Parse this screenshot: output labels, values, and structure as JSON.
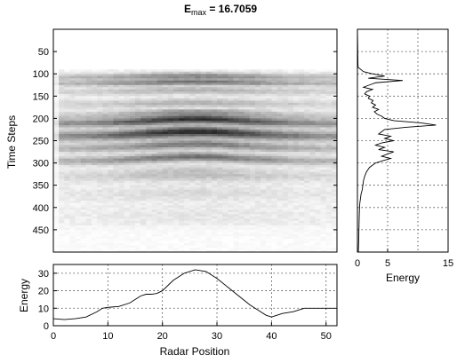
{
  "chart_data": [
    {
      "type": "heatmap",
      "title_main": "E",
      "title_sub": "max",
      "title_rest": " = 16.7059",
      "ylabel": "Time Steps",
      "xlim": [
        0,
        52
      ],
      "ylim": [
        0,
        500
      ],
      "y_reversed": true,
      "yticks": [
        "50",
        "100",
        "150",
        "200",
        "250",
        "300",
        "350",
        "400",
        "450"
      ],
      "ytick_values": [
        50,
        100,
        150,
        200,
        250,
        300,
        350,
        400,
        450
      ],
      "colormap": "gray-reversed",
      "data_rows": [
        90,
        500
      ],
      "bands": [
        {
          "t": 108,
          "w": 8,
          "amp": 0.5
        },
        {
          "t": 122,
          "w": 6,
          "amp": 0.55
        },
        {
          "t": 140,
          "w": 9,
          "amp": 0.3
        },
        {
          "t": 168,
          "w": 10,
          "amp": 0.3
        },
        {
          "t": 195,
          "w": 10,
          "amp": 0.4
        },
        {
          "t": 212,
          "w": 9,
          "amp": 0.85
        },
        {
          "t": 240,
          "w": 12,
          "amp": 0.9
        },
        {
          "t": 268,
          "w": 10,
          "amp": 0.55
        },
        {
          "t": 296,
          "w": 10,
          "amp": 0.6
        },
        {
          "t": 330,
          "w": 14,
          "amp": 0.25
        },
        {
          "t": 370,
          "w": 18,
          "amp": 0.12
        },
        {
          "t": 420,
          "w": 25,
          "amp": 0.07
        }
      ]
    },
    {
      "type": "line",
      "orientation": "vertical",
      "xlabel": "Energy",
      "xlim": [
        0,
        15
      ],
      "xticks": [
        "0",
        "5",
        "15"
      ],
      "xtick_values": [
        0,
        5,
        15
      ],
      "ylim": [
        0,
        500
      ],
      "y_reversed": true,
      "grid": true,
      "color": "#000000",
      "t": [
        0,
        85,
        95,
        100,
        105,
        110,
        115,
        120,
        125,
        130,
        135,
        140,
        145,
        150,
        155,
        160,
        165,
        170,
        175,
        180,
        185,
        190,
        195,
        200,
        205,
        210,
        215,
        220,
        225,
        230,
        235,
        240,
        245,
        250,
        255,
        260,
        265,
        270,
        275,
        280,
        285,
        290,
        295,
        300,
        305,
        310,
        320,
        330,
        340,
        350,
        360,
        370,
        380,
        390,
        400,
        420,
        450,
        480,
        500
      ],
      "energy": [
        0,
        0.1,
        1.0,
        2.5,
        4.5,
        1.8,
        7.5,
        3.0,
        2.0,
        1.0,
        2.5,
        1.5,
        1.2,
        2.0,
        1.8,
        2.6,
        2.3,
        3.0,
        2.5,
        3.5,
        2.8,
        3.2,
        4.0,
        4.5,
        6.0,
        10.5,
        13.0,
        8.0,
        4.5,
        4.0,
        3.5,
        5.5,
        4.5,
        6.0,
        4.0,
        3.0,
        4.5,
        3.5,
        6.0,
        5.0,
        4.0,
        5.5,
        4.2,
        3.0,
        2.5,
        2.0,
        1.5,
        1.2,
        1.0,
        0.9,
        0.8,
        0.6,
        0.5,
        0.4,
        0.35,
        0.3,
        0.25,
        0.2,
        0.15
      ]
    },
    {
      "type": "line",
      "ylabel": "Energy",
      "xlabel": "Radar Position",
      "xlim": [
        0,
        52
      ],
      "ylim": [
        0,
        35
      ],
      "xticks": [
        "0",
        "10",
        "20",
        "30",
        "40",
        "50"
      ],
      "xtick_values": [
        0,
        10,
        20,
        30,
        40,
        50
      ],
      "yticks": [
        "0",
        "10",
        "20",
        "30"
      ],
      "ytick_values": [
        0,
        10,
        20,
        30
      ],
      "grid": true,
      "color": "#000000",
      "x": [
        0,
        2,
        4,
        6,
        8,
        9,
        10,
        12,
        14,
        16,
        17,
        18,
        19,
        20,
        22,
        24,
        26,
        28,
        30,
        32,
        34,
        36,
        38,
        39,
        40,
        41,
        42,
        44,
        46,
        48,
        50,
        52
      ],
      "y": [
        4,
        3.5,
        4,
        5,
        8,
        10,
        10.5,
        11,
        13,
        17,
        18,
        18,
        18.5,
        20,
        26,
        30,
        32,
        31,
        27,
        22,
        17,
        12,
        8,
        6,
        5,
        6,
        7,
        8,
        10,
        10,
        10,
        10
      ]
    }
  ]
}
